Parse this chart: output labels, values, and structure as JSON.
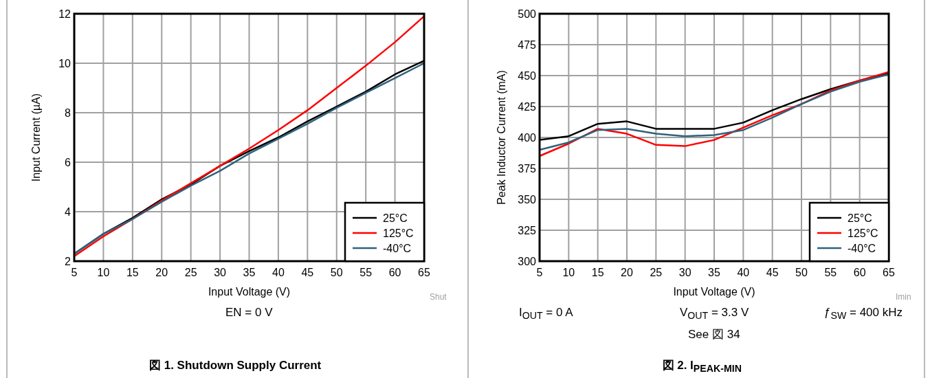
{
  "chart_data": [
    {
      "type": "line",
      "title": "図 1. Shutdown Supply Current",
      "xlabel": "Input Voltage (V)",
      "ylabel": "Input Current (µA)",
      "x": [
        5,
        10,
        15,
        20,
        25,
        30,
        35,
        40,
        45,
        50,
        55,
        60,
        65
      ],
      "xlim": [
        5,
        65
      ],
      "xticks": [
        5,
        10,
        15,
        20,
        25,
        30,
        35,
        40,
        45,
        50,
        55,
        60,
        65
      ],
      "ylim": [
        2,
        12
      ],
      "yticks": [
        2,
        4,
        6,
        8,
        10,
        12
      ],
      "grid": true,
      "legend": "bottom right",
      "series": [
        {
          "name": "25°C",
          "color": "#000000",
          "values": [
            2.3,
            3.1,
            3.75,
            4.5,
            5.1,
            5.85,
            6.45,
            7.0,
            7.65,
            8.25,
            8.85,
            9.55,
            10.1
          ]
        },
        {
          "name": "125°C",
          "color": "#ff0000",
          "values": [
            2.2,
            3.0,
            3.7,
            4.45,
            5.15,
            5.85,
            6.55,
            7.3,
            8.1,
            9.0,
            9.9,
            10.85,
            11.9
          ]
        },
        {
          "name": "-40°C",
          "color": "#2f627c",
          "values": [
            2.3,
            3.1,
            3.7,
            4.4,
            5.05,
            5.65,
            6.35,
            6.95,
            7.55,
            8.2,
            8.8,
            9.4,
            10.0
          ]
        }
      ],
      "annotations": [
        "Shut",
        "EN = 0 V"
      ]
    },
    {
      "type": "line",
      "title": "図 2. I$_{PEAK-MIN}$",
      "xlabel": "Input Voltage (V)",
      "ylabel": "Peak Inductor Current (mA)",
      "x": [
        5,
        10,
        15,
        20,
        25,
        30,
        35,
        40,
        45,
        50,
        55,
        60,
        65
      ],
      "xlim": [
        5,
        65
      ],
      "xticks": [
        5,
        10,
        15,
        20,
        25,
        30,
        35,
        40,
        45,
        50,
        55,
        60,
        65
      ],
      "ylim": [
        300,
        500
      ],
      "yticks": [
        300,
        325,
        350,
        375,
        400,
        425,
        450,
        475,
        500
      ],
      "grid": true,
      "legend": "bottom right",
      "series": [
        {
          "name": "25°C",
          "color": "#000000",
          "values": [
            398,
            401,
            411,
            413,
            407,
            407,
            407,
            412,
            422,
            431,
            439,
            446,
            452
          ]
        },
        {
          "name": "125°C",
          "color": "#ff0000",
          "values": [
            385,
            395,
            407,
            403,
            394,
            393,
            398,
            408,
            418,
            427,
            438,
            446,
            453
          ]
        },
        {
          "name": "-40°C",
          "color": "#2f627c",
          "values": [
            390,
            396,
            406,
            407,
            403,
            401,
            402,
            406,
            416,
            427,
            437,
            445,
            451
          ]
        }
      ],
      "annotations": [
        "Imin",
        "I$_{OUT}$ = 0 A",
        "V$_{OUT}$ = 3.3 V",
        "ƒ$_{SW}$ = 400 kHz",
        "See 図 34"
      ]
    }
  ]
}
